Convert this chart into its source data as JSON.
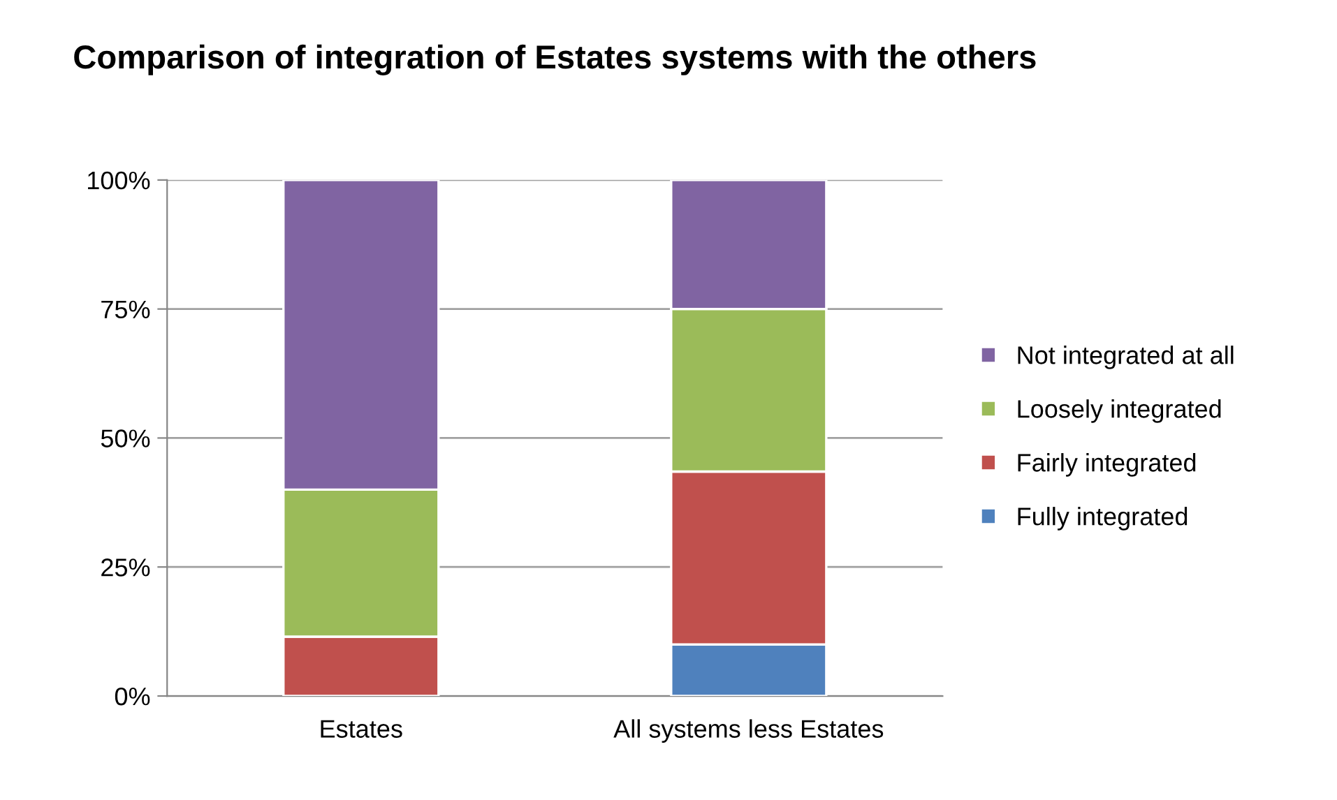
{
  "chart_data": {
    "type": "bar",
    "stacked": true,
    "title": "Comparison of integration of Estates systems with the others",
    "categories": [
      "Estates",
      "All systems less Estates"
    ],
    "series": [
      {
        "name": "Fully integrated",
        "color": "#4f81bd",
        "values": [
          0,
          10
        ]
      },
      {
        "name": "Fairly integrated",
        "color": "#c0504d",
        "values": [
          11.5,
          33.5
        ]
      },
      {
        "name": "Loosely integrated",
        "color": "#9bbb59",
        "values": [
          28.5,
          31.5
        ]
      },
      {
        "name": "Not integrated at all",
        "color": "#8064a2",
        "values": [
          60,
          25
        ]
      }
    ],
    "ylim": [
      0,
      100
    ],
    "yticks": [
      {
        "value": 0,
        "label": "0%"
      },
      {
        "value": 25,
        "label": "25%"
      },
      {
        "value": 50,
        "label": "50%"
      },
      {
        "value": 75,
        "label": "75%"
      },
      {
        "value": 100,
        "label": "100%"
      }
    ],
    "grid": "y",
    "legend": "right"
  }
}
